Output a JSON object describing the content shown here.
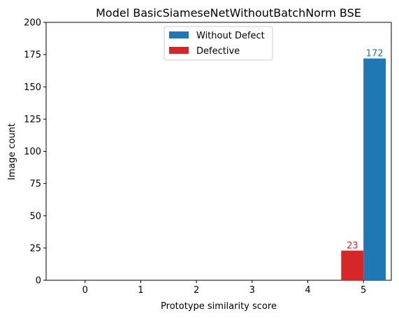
{
  "chart_data": {
    "type": "bar",
    "title": "Model BasicSiameseNetWithoutBatchNorm BSE",
    "xlabel": "Prototype similarity score",
    "ylabel": "Image count",
    "categories": [
      "0",
      "1",
      "2",
      "3",
      "4",
      "5"
    ],
    "ylim": [
      0,
      200
    ],
    "yticks": [
      0,
      25,
      50,
      75,
      100,
      125,
      150,
      175,
      200
    ],
    "xlim": [
      -0.7,
      5.5
    ],
    "legend_position": "top-center",
    "series": [
      {
        "name": "Defective",
        "color": "#d62728",
        "values": [
          0,
          0,
          0,
          0,
          0,
          23
        ]
      },
      {
        "name": "Without Defect",
        "color": "#1f77b4",
        "values": [
          0,
          0,
          0,
          0,
          0,
          172
        ]
      }
    ],
    "legend_order": [
      "Without Defect",
      "Defective"
    ],
    "data_labels": [
      {
        "series": "Defective",
        "category": "5",
        "text": "23"
      },
      {
        "series": "Without Defect",
        "category": "5",
        "text": "172"
      }
    ]
  }
}
